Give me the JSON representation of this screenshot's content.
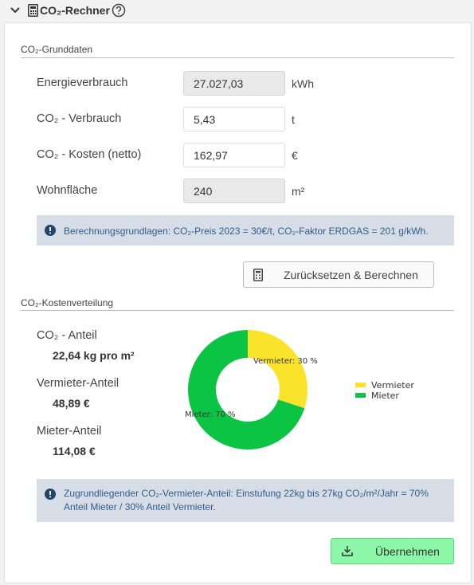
{
  "header": {
    "title": "CO₂-Rechner",
    "icons": [
      "chevron-down-icon",
      "calculator-icon",
      "help-circle-icon"
    ]
  },
  "grunddaten": {
    "section_title": "CO₂-Grunddaten",
    "fields": [
      {
        "label": "Energieverbrauch",
        "value": "27.027,03",
        "unit": "kWh",
        "readonly": true
      },
      {
        "label": "CO₂ - Verbrauch",
        "value": "5,43",
        "unit": "t",
        "readonly": false
      },
      {
        "label": "CO₂ - Kosten (netto)",
        "value": "162,97",
        "unit": "€",
        "readonly": false
      },
      {
        "label": "Wohnfläche",
        "value": "240",
        "unit": "m²",
        "readonly": true
      }
    ],
    "info": "Berechnungsgrundlagen: CO₂-Preis 2023 = 30€/t, CO₂-Faktor ERDGAS = 201 g/kWh.",
    "reset_button": "Zurücksetzen & Berechnen"
  },
  "verteilung": {
    "section_title": "CO₂-Kostenverteilung",
    "stats": [
      {
        "label": "CO₂ - Anteil",
        "value": "22,64 kg pro m²"
      },
      {
        "label": "Vermieter-Anteil",
        "value": "48,89 €"
      },
      {
        "label": "Mieter-Anteil",
        "value": "114,08 €"
      }
    ],
    "info": "Zugrundliegender CO₂-Vermieter-Anteil: Einstufung 22kg bis 27kg CO₂/m²/Jahr = 70% Anteil Mieter / 30% Anteil Vermieter.",
    "accept_button": "Übernehmen"
  },
  "chart_data": {
    "type": "pie",
    "donut": true,
    "categories": [
      "Vermieter",
      "Mieter"
    ],
    "values": [
      30,
      70
    ],
    "data_labels": [
      "Vermieter: 30 %",
      "Mieter: 70 %"
    ],
    "colors": [
      "#fbe32b",
      "#0cc443"
    ],
    "legend": "right",
    "title": ""
  },
  "colors": {
    "info_bg": "#d6dde6",
    "info_text": "#2f5d8a",
    "accept_bg": "#8cf7a8"
  }
}
